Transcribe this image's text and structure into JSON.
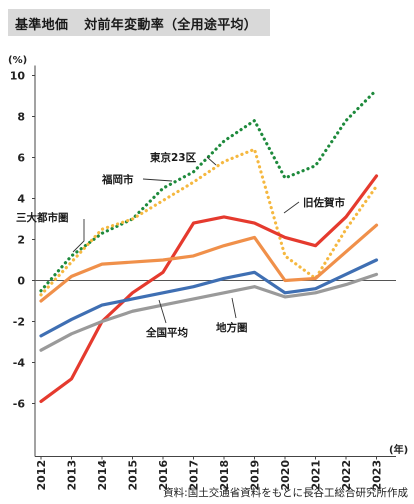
{
  "header": {
    "title_main": "基準地価",
    "title_sub": "対前年変動率（全用途平均）"
  },
  "source": "資料:国土交通省資料をもとに長谷工総合研究所作成",
  "chart_data": {
    "type": "line",
    "x": [
      2012,
      2013,
      2014,
      2015,
      2016,
      2017,
      2018,
      2019,
      2020,
      2021,
      2022,
      2023
    ],
    "x_tick_labels": [
      "2012",
      "2013",
      "2014",
      "2015",
      "2016",
      "2017",
      "2018",
      "2019",
      "2020",
      "2021",
      "2022",
      "2023"
    ],
    "x_unit": "(年)",
    "y_unit": "(%)",
    "ylim": [
      -8,
      10
    ],
    "y_ticks": [
      10,
      8,
      6,
      4,
      2,
      0,
      -2,
      -4,
      -6
    ],
    "y_tick_labels": [
      "10",
      "8",
      "6",
      "4",
      "2",
      "0",
      "-2",
      "-4",
      "-6"
    ],
    "grid": false,
    "series": [
      {
        "name": "東京23区",
        "color": "#1e8a3c",
        "style": "dotted",
        "values": [
          -0.5,
          1.2,
          2.3,
          3.0,
          4.5,
          5.3,
          6.8,
          7.8,
          5.0,
          5.6,
          7.8,
          9.3
        ]
      },
      {
        "name": "福岡市",
        "color": "#f5b840",
        "style": "dotted",
        "values": [
          -0.7,
          0.9,
          2.5,
          3.0,
          3.9,
          4.8,
          5.8,
          6.4,
          1.2,
          0.1,
          2.5,
          4.6
        ]
      },
      {
        "name": "旧佐賀市",
        "color": "#e53a2e",
        "style": "solid",
        "values": [
          -5.9,
          -4.8,
          -2.0,
          -0.6,
          0.4,
          2.8,
          3.1,
          2.8,
          2.1,
          1.7,
          3.1,
          5.1
        ]
      },
      {
        "name": "三大都市圏",
        "color": "#f0904a",
        "style": "solid",
        "values": [
          -1.0,
          0.2,
          0.8,
          0.9,
          1.0,
          1.2,
          1.7,
          2.1,
          0.0,
          0.1,
          1.4,
          2.7
        ]
      },
      {
        "name": "全国平均",
        "color": "#3f6fb3",
        "style": "solid",
        "values": [
          -2.7,
          -1.9,
          -1.2,
          -0.9,
          -0.6,
          -0.3,
          0.1,
          0.4,
          -0.6,
          -0.4,
          0.3,
          1.0
        ]
      },
      {
        "name": "地方圏",
        "color": "#9a9a9a",
        "style": "solid",
        "values": [
          -3.4,
          -2.6,
          -2.0,
          -1.5,
          -1.2,
          -0.9,
          -0.6,
          -0.3,
          -0.8,
          -0.6,
          -0.2,
          0.3
        ]
      }
    ]
  }
}
